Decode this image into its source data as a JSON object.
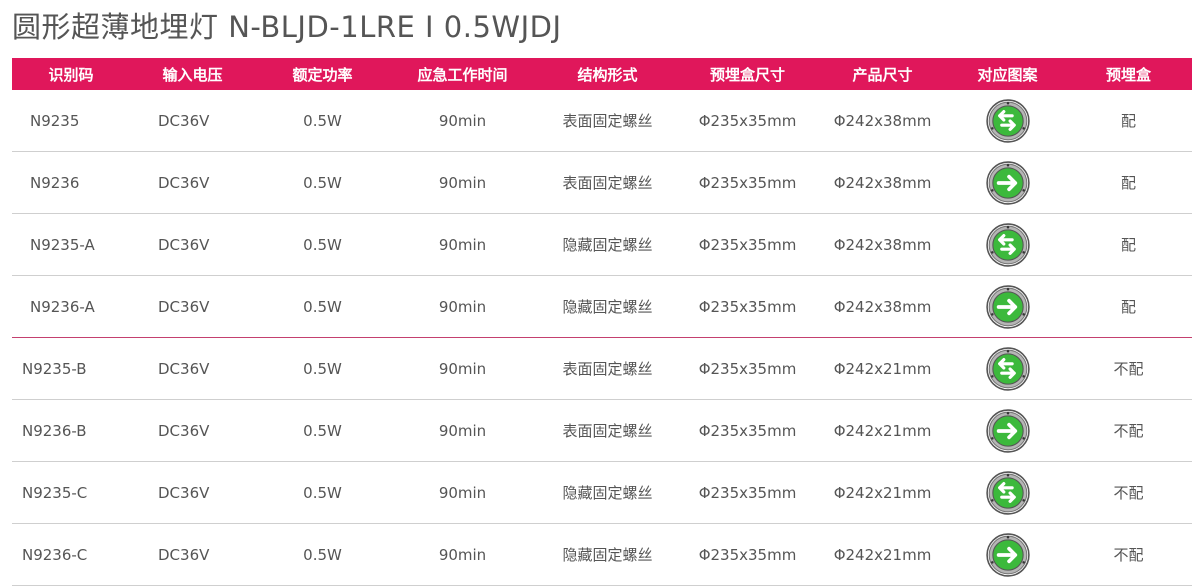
{
  "title": "圆形超薄地埋灯  N-BLJD-1LRE Ⅰ 0.5WJDJ",
  "colors": {
    "header_bg": "#e0175b",
    "icon_green": "#3cb93c",
    "ring": "#9a9a9a"
  },
  "headers": [
    "识别码",
    "输入电压",
    "额定功率",
    "应急工作时间",
    "结构形式",
    "预埋盒尺寸",
    "产品尺寸",
    "对应图案",
    "预埋盒"
  ],
  "rows": [
    {
      "code": "N9235",
      "voltage": "DC36V",
      "power": "0.5W",
      "time": "90min",
      "structure": "表面固定螺丝",
      "box_size": "Φ235x35mm",
      "size": "Φ242x38mm",
      "pattern": "both",
      "box": "配"
    },
    {
      "code": "N9236",
      "voltage": "DC36V",
      "power": "0.5W",
      "time": "90min",
      "structure": "表面固定螺丝",
      "box_size": "Φ235x35mm",
      "size": "Φ242x38mm",
      "pattern": "right",
      "box": "配"
    },
    {
      "code": "N9235-A",
      "voltage": "DC36V",
      "power": "0.5W",
      "time": "90min",
      "structure": "隐藏固定螺丝",
      "box_size": "Φ235x35mm",
      "size": "Φ242x38mm",
      "pattern": "both",
      "box": "配"
    },
    {
      "code": "N9236-A",
      "voltage": "DC36V",
      "power": "0.5W",
      "time": "90min",
      "structure": "隐藏固定螺丝",
      "box_size": "Φ235x35mm",
      "size": "Φ242x38mm",
      "pattern": "right",
      "box": "配"
    },
    {
      "code": "N9235-B",
      "voltage": "DC36V",
      "power": "0.5W",
      "time": "90min",
      "structure": "表面固定螺丝",
      "box_size": "Φ235x35mm",
      "size": "Φ242x21mm",
      "pattern": "both",
      "box": "不配"
    },
    {
      "code": "N9236-B",
      "voltage": "DC36V",
      "power": "0.5W",
      "time": "90min",
      "structure": "表面固定螺丝",
      "box_size": "Φ235x35mm",
      "size": "Φ242x21mm",
      "pattern": "right",
      "box": "不配"
    },
    {
      "code": "N9235-C",
      "voltage": "DC36V",
      "power": "0.5W",
      "time": "90min",
      "structure": "隐藏固定螺丝",
      "box_size": "Φ235x35mm",
      "size": "Φ242x21mm",
      "pattern": "both",
      "box": "不配"
    },
    {
      "code": "N9236-C",
      "voltage": "DC36V",
      "power": "0.5W",
      "time": "90min",
      "structure": "隐藏固定螺丝",
      "box_size": "Φ235x35mm",
      "size": "Φ242x21mm",
      "pattern": "right",
      "box": "不配"
    }
  ]
}
